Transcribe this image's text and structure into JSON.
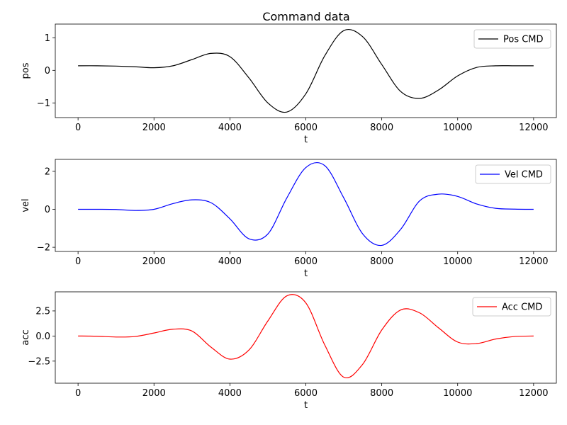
{
  "chart_data": [
    {
      "type": "line",
      "title": "Command data",
      "xlabel": "t",
      "ylabel": "pos",
      "xlim": [
        -600,
        12600
      ],
      "ylim": [
        -1.45,
        1.42
      ],
      "xticks": [
        0,
        2000,
        4000,
        6000,
        8000,
        10000,
        12000
      ],
      "yticks": [
        1,
        0,
        -1
      ],
      "ytick_labels": [
        "1",
        "0",
        "−1"
      ],
      "grid": false,
      "legend_position": "top-right",
      "series": [
        {
          "name": "Pos CMD",
          "color": "#000000",
          "x": [
            0,
            500,
            1000,
            1500,
            2000,
            2500,
            3000,
            3500,
            4000,
            4500,
            5000,
            5500,
            6000,
            6500,
            7000,
            7500,
            8000,
            8500,
            9000,
            9500,
            10000,
            10500,
            11000,
            11500,
            12000
          ],
          "y": [
            0.14,
            0.14,
            0.13,
            0.11,
            0.08,
            0.14,
            0.33,
            0.52,
            0.42,
            -0.23,
            -1.0,
            -1.28,
            -0.72,
            0.45,
            1.22,
            1.03,
            0.18,
            -0.65,
            -0.86,
            -0.6,
            -0.17,
            0.09,
            0.14,
            0.14,
            0.14
          ]
        }
      ]
    },
    {
      "type": "line",
      "title": "",
      "xlabel": "t",
      "ylabel": "vel",
      "xlim": [
        -600,
        12600
      ],
      "ylim": [
        -2.22,
        2.63
      ],
      "xticks": [
        0,
        2000,
        4000,
        6000,
        8000,
        10000,
        12000
      ],
      "yticks": [
        2,
        0,
        -2
      ],
      "ytick_labels": [
        "2",
        "0",
        "−2"
      ],
      "grid": false,
      "legend_position": "top-right",
      "series": [
        {
          "name": "Vel CMD",
          "color": "#0000ff",
          "x": [
            0,
            500,
            1000,
            1500,
            2000,
            2500,
            3000,
            3500,
            4000,
            4500,
            5000,
            5500,
            6000,
            6500,
            7000,
            7500,
            8000,
            8500,
            9000,
            9500,
            10000,
            10500,
            11000,
            11500,
            12000
          ],
          "y": [
            0.0,
            0.0,
            -0.01,
            -0.06,
            0.0,
            0.3,
            0.5,
            0.35,
            -0.5,
            -1.55,
            -1.3,
            0.6,
            2.2,
            2.3,
            0.6,
            -1.3,
            -1.9,
            -1.05,
            0.45,
            0.8,
            0.68,
            0.28,
            0.05,
            0.01,
            0.0
          ]
        }
      ]
    },
    {
      "type": "line",
      "title": "",
      "xlabel": "t",
      "ylabel": "acc",
      "xlim": [
        -600,
        12600
      ],
      "ylim": [
        -4.7,
        4.4
      ],
      "xticks": [
        0,
        2000,
        4000,
        6000,
        8000,
        10000,
        12000
      ],
      "yticks": [
        2.5,
        0.0,
        -2.5
      ],
      "ytick_labels": [
        "2.5",
        "0.0",
        "−2.5"
      ],
      "grid": false,
      "legend_position": "top-right",
      "series": [
        {
          "name": "Acc CMD",
          "color": "#ff0000",
          "x": [
            0,
            500,
            1000,
            1500,
            2000,
            2500,
            3000,
            3500,
            4000,
            4500,
            5000,
            5500,
            6000,
            6500,
            7000,
            7500,
            8000,
            8500,
            9000,
            9500,
            10000,
            10500,
            11000,
            11500,
            12000
          ],
          "y": [
            0.0,
            -0.02,
            -0.1,
            -0.05,
            0.3,
            0.68,
            0.5,
            -1.1,
            -2.3,
            -1.4,
            1.5,
            4.0,
            3.3,
            -0.9,
            -4.1,
            -2.8,
            0.6,
            2.6,
            2.3,
            0.8,
            -0.6,
            -0.75,
            -0.3,
            -0.05,
            0.0
          ]
        }
      ]
    }
  ]
}
